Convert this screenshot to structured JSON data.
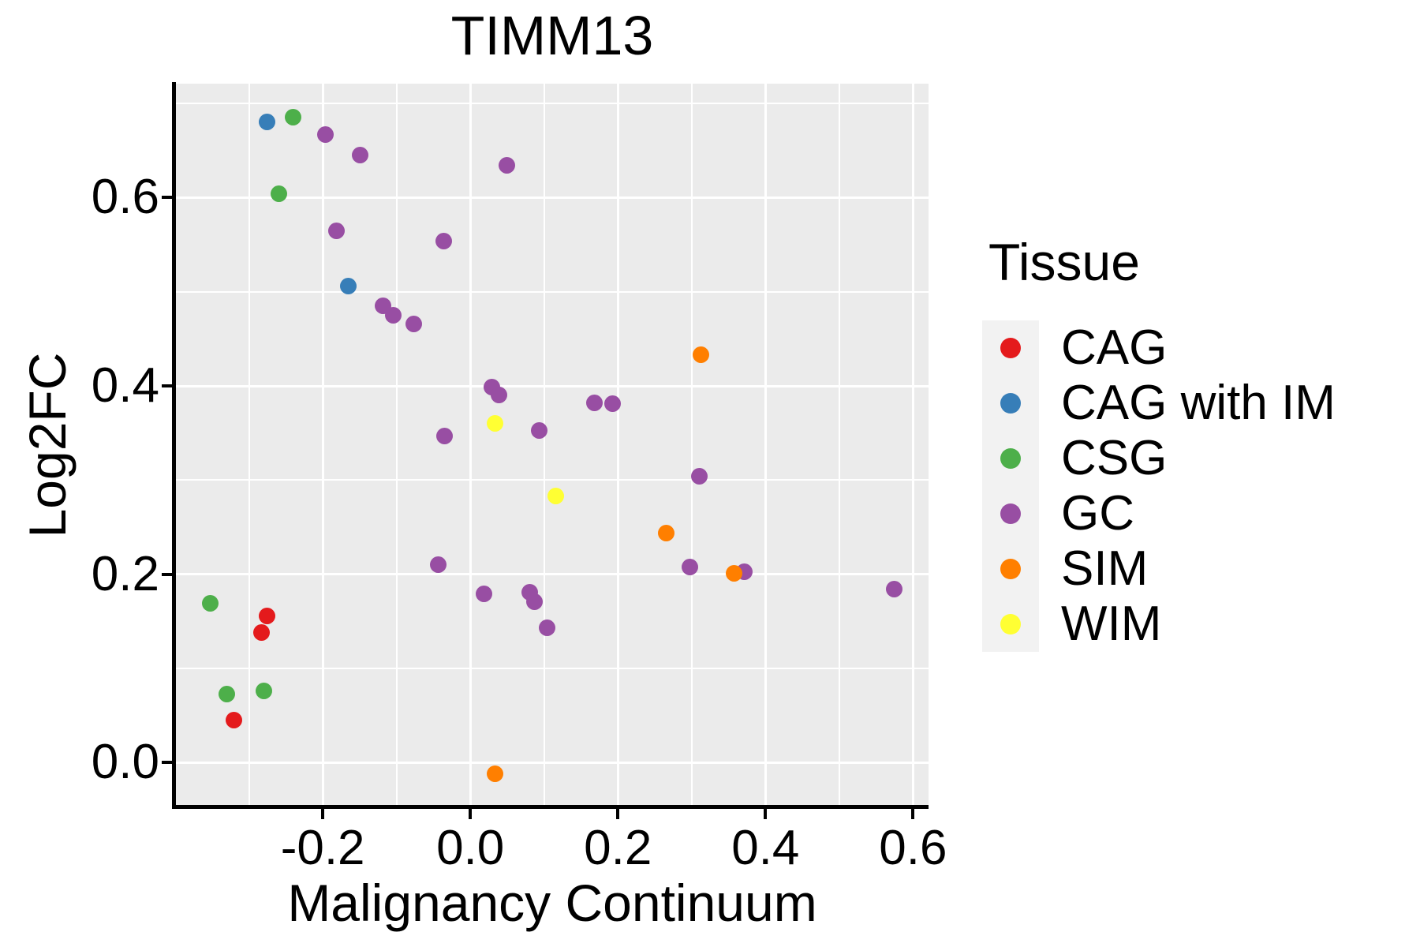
{
  "chart_data": {
    "type": "scatter",
    "title": "TIMM13",
    "xlabel": "Malignancy Continuum",
    "ylabel": "Log2FC",
    "xlim": [
      -0.399,
      0.621
    ],
    "ylim": [
      -0.045,
      0.721
    ],
    "x_major_ticks": [
      -0.2,
      0.0,
      0.2,
      0.4,
      0.6
    ],
    "x_tick_labels": [
      "-0.2",
      "0.0",
      "0.2",
      "0.4",
      "0.6"
    ],
    "x_minor_ticks": [
      -0.3,
      -0.1,
      0.1,
      0.3,
      0.5
    ],
    "y_major_ticks": [
      0.0,
      0.2,
      0.4,
      0.6
    ],
    "y_tick_labels": [
      "0.0",
      "0.2",
      "0.4",
      "0.6"
    ],
    "y_minor_ticks": [
      0.1,
      0.3,
      0.5,
      0.7
    ],
    "grid": "on",
    "legend_position": "right",
    "legend_title": "Tissue",
    "series": [
      {
        "name": "CAG",
        "color": "#E41A1C",
        "points": [
          [
            -0.276,
            0.156
          ],
          [
            -0.283,
            0.138
          ],
          [
            -0.32,
            0.045
          ]
        ]
      },
      {
        "name": "CAG with IM",
        "color": "#377EB8",
        "points": [
          [
            -0.276,
            0.68
          ],
          [
            -0.165,
            0.506
          ]
        ]
      },
      {
        "name": "CSG",
        "color": "#4DAF4A",
        "points": [
          [
            -0.24,
            0.685
          ],
          [
            -0.26,
            0.604
          ],
          [
            -0.353,
            0.169
          ],
          [
            -0.33,
            0.073
          ],
          [
            -0.28,
            0.076
          ]
        ]
      },
      {
        "name": "GC",
        "color": "#984EA3",
        "points": [
          [
            -0.196,
            0.667
          ],
          [
            -0.149,
            0.645
          ],
          [
            0.05,
            0.634
          ],
          [
            -0.181,
            0.565
          ],
          [
            -0.036,
            0.554
          ],
          [
            -0.118,
            0.485
          ],
          [
            -0.104,
            0.475
          ],
          [
            -0.077,
            0.466
          ],
          [
            0.029,
            0.399
          ],
          [
            0.039,
            0.39
          ],
          [
            0.168,
            0.382
          ],
          [
            0.193,
            0.381
          ],
          [
            0.093,
            0.353
          ],
          [
            -0.035,
            0.347
          ],
          [
            0.31,
            0.304
          ],
          [
            -0.044,
            0.21
          ],
          [
            0.298,
            0.208
          ],
          [
            0.371,
            0.203
          ],
          [
            0.018,
            0.179
          ],
          [
            0.081,
            0.181
          ],
          [
            0.087,
            0.171
          ],
          [
            0.104,
            0.143
          ],
          [
            0.575,
            0.184
          ]
        ]
      },
      {
        "name": "SIM",
        "color": "#FF7F00",
        "points": [
          [
            0.313,
            0.433
          ],
          [
            0.266,
            0.244
          ],
          [
            0.357,
            0.201
          ],
          [
            0.033,
            -0.012
          ]
        ]
      },
      {
        "name": "WIM",
        "color": "#FFFF33",
        "points": [
          [
            0.033,
            0.36
          ],
          [
            0.116,
            0.283
          ]
        ]
      }
    ]
  }
}
